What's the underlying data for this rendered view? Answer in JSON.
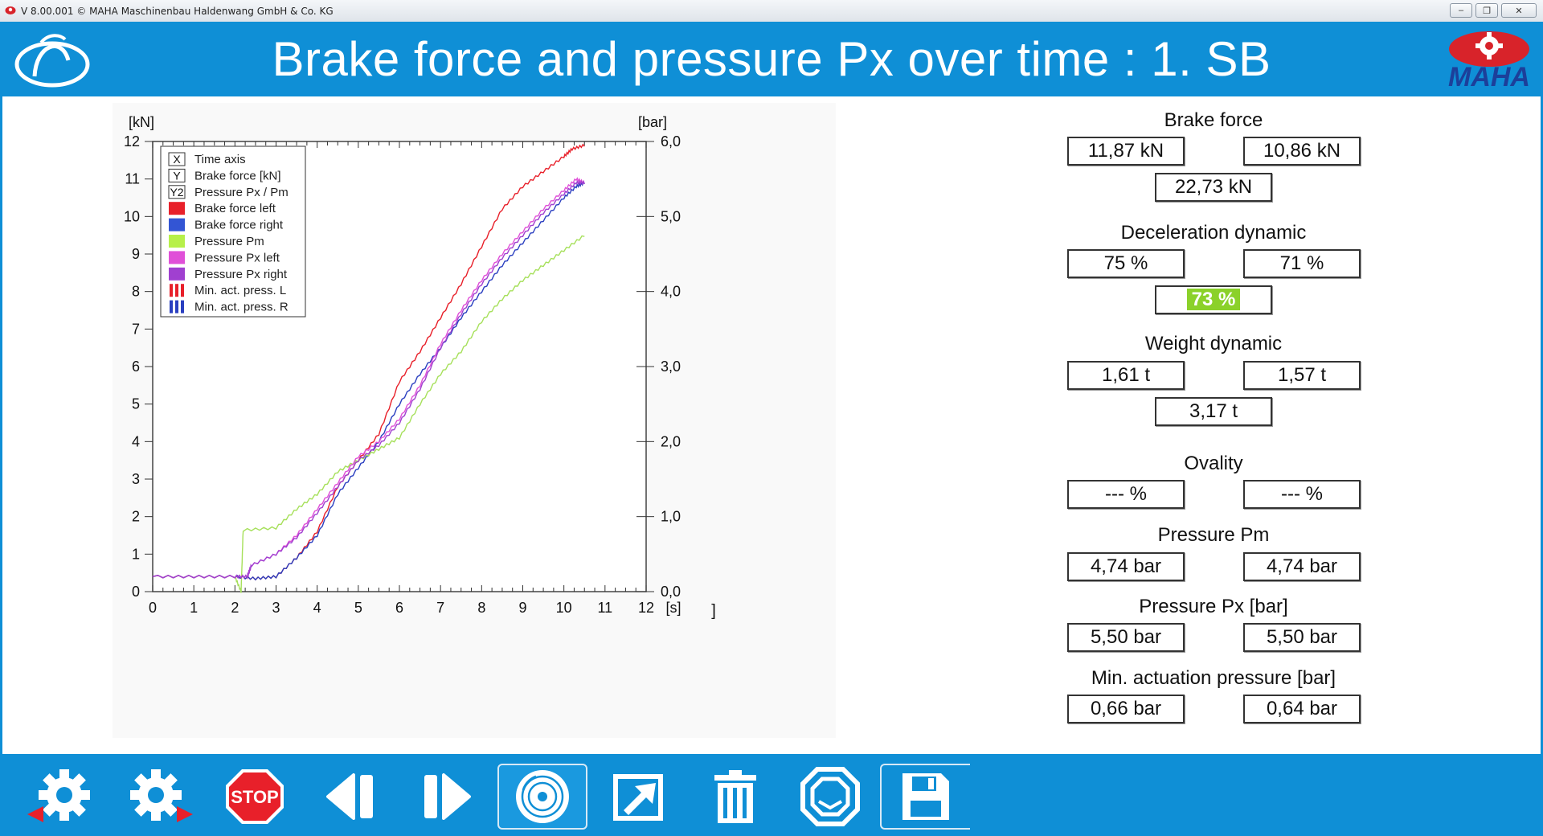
{
  "window": {
    "title": "V 8.00.001  © MAHA Maschinenbau Haldenwang GmbH & Co. KG",
    "min": "–",
    "restore": "❐",
    "close": "✕"
  },
  "header": {
    "title": "Brake force and pressure Px over time : 1. SB",
    "logo_text": "MAHA"
  },
  "colors": {
    "header": "#0f8fd6",
    "brake_left": "#e8202a",
    "brake_right": "#2a3fc0",
    "pressure_pm": "#a6e05a",
    "pressure_px_left": "#e050d8",
    "pressure_px_right": "#a040d0",
    "highlight": "#8bd12a"
  },
  "chart_data": {
    "type": "line",
    "y_unit": "[kN]",
    "y2_unit": "[bar]",
    "x_unit": "[s]",
    "x_trailing": "]",
    "xlim": [
      0,
      12
    ],
    "ylim": [
      0,
      12
    ],
    "y2lim": [
      0,
      6
    ],
    "x_ticks": [
      "0",
      "1",
      "2",
      "3",
      "4",
      "5",
      "6",
      "7",
      "8",
      "9",
      "10",
      "11",
      "12"
    ],
    "y_ticks": [
      "0",
      "1",
      "2",
      "3",
      "4",
      "5",
      "6",
      "7",
      "8",
      "9",
      "10",
      "11",
      "12"
    ],
    "y2_ticks": [
      "0,0",
      "1,0",
      "2,0",
      "3,0",
      "4,0",
      "5,0",
      "6,0"
    ],
    "legend_position": "top-left",
    "legend": [
      {
        "symbol": "X",
        "label": "Time axis"
      },
      {
        "symbol": "Y",
        "label": "Brake force [kN]"
      },
      {
        "symbol": "Y2",
        "label": "Pressure Px / Pm"
      },
      {
        "swatch": "#e8202a",
        "label": "Brake force left"
      },
      {
        "swatch": "#3355d4",
        "label": "Brake force right"
      },
      {
        "swatch": "#b7f04a",
        "label": "Pressure Pm"
      },
      {
        "swatch": "#e050d8",
        "label": "Pressure Px left"
      },
      {
        "swatch": "#a040d0",
        "label": "Pressure Px right"
      },
      {
        "bars": "#e8202a",
        "label": "Min. act. press. L"
      },
      {
        "bars": "#2a3fc0",
        "label": "Min. act. press. R"
      }
    ],
    "series": [
      {
        "name": "Brake force left",
        "color": "#e8202a",
        "axis": "y",
        "x": [
          0,
          1,
          2,
          2.5,
          3,
          3.5,
          4,
          4.5,
          5,
          5.5,
          6,
          6.5,
          7,
          7.5,
          8,
          8.5,
          9,
          9.5,
          10,
          10.2,
          10.5
        ],
        "y": [
          0.4,
          0.4,
          0.4,
          0.35,
          0.4,
          0.9,
          1.6,
          2.8,
          3.5,
          4.2,
          5.6,
          6.4,
          7.3,
          8.2,
          9.2,
          10.2,
          10.8,
          11.2,
          11.6,
          11.8,
          11.9
        ]
      },
      {
        "name": "Brake force right",
        "color": "#2a3fc0",
        "axis": "y",
        "x": [
          0,
          1,
          2,
          2.5,
          3,
          3.5,
          4,
          4.5,
          5,
          5.5,
          6,
          6.5,
          7,
          7.5,
          8,
          8.5,
          9,
          9.5,
          10,
          10.3,
          10.5
        ],
        "y": [
          0.4,
          0.4,
          0.4,
          0.35,
          0.4,
          0.9,
          1.5,
          2.6,
          3.3,
          4.0,
          5.0,
          5.8,
          6.5,
          7.3,
          8.0,
          8.7,
          9.3,
          9.9,
          10.5,
          10.8,
          10.9
        ]
      },
      {
        "name": "Pressure Pm",
        "color": "#a6e05a",
        "axis": "y2",
        "x": [
          0,
          1,
          2,
          2.15,
          2.2,
          3,
          3.5,
          4,
          4.5,
          5,
          5.5,
          6,
          6.5,
          7,
          7.5,
          8,
          8.5,
          9,
          9.5,
          10,
          10.5
        ],
        "y": [
          0.2,
          0.2,
          0.2,
          0.0,
          0.82,
          0.85,
          1.1,
          1.3,
          1.6,
          1.75,
          1.9,
          2.05,
          2.5,
          2.9,
          3.2,
          3.6,
          3.9,
          4.15,
          4.35,
          4.55,
          4.75
        ]
      },
      {
        "name": "Pressure Px left",
        "color": "#e050d8",
        "axis": "y2",
        "x": [
          0,
          1,
          2,
          2.3,
          2.4,
          3,
          3.5,
          4,
          4.5,
          5,
          5.5,
          6,
          6.5,
          7,
          7.5,
          8,
          8.5,
          9,
          9.5,
          10,
          10.3,
          10.5
        ],
        "y": [
          0.2,
          0.2,
          0.2,
          0.2,
          0.35,
          0.5,
          0.75,
          1.1,
          1.45,
          1.8,
          2.0,
          2.3,
          2.75,
          3.3,
          3.75,
          4.15,
          4.5,
          4.8,
          5.1,
          5.35,
          5.5,
          5.45
        ]
      },
      {
        "name": "Pressure Px right",
        "color": "#a040d0",
        "axis": "y2",
        "x": [
          0,
          1,
          2,
          2.3,
          2.4,
          3,
          3.5,
          4,
          4.5,
          5,
          5.5,
          6,
          6.5,
          7,
          7.5,
          8,
          8.5,
          9,
          9.5,
          10,
          10.3,
          10.5
        ],
        "y": [
          0.2,
          0.2,
          0.2,
          0.2,
          0.35,
          0.5,
          0.72,
          1.05,
          1.4,
          1.75,
          1.95,
          2.25,
          2.7,
          3.25,
          3.7,
          4.1,
          4.45,
          4.75,
          5.05,
          5.3,
          5.45,
          5.45
        ]
      }
    ]
  },
  "panel": {
    "brake_force": {
      "label": "Brake force",
      "left": "11,87 kN",
      "right": "10,86 kN",
      "total": "22,73 kN"
    },
    "deceleration": {
      "label": "Deceleration dynamic",
      "left": "75 %",
      "right": "71 %",
      "total": "73 %"
    },
    "weight": {
      "label": "Weight dynamic",
      "left": "1,61 t",
      "right": "1,57 t",
      "total": "3,17 t"
    },
    "ovality": {
      "label": "Ovality",
      "left": "--- %",
      "right": "--- %"
    },
    "pressure_pm": {
      "label": "Pressure Pm",
      "left": "4,74 bar",
      "right": "4,74 bar"
    },
    "pressure_px": {
      "label": "Pressure Px  [bar]",
      "left": "5,50 bar",
      "right": "5,50 bar"
    },
    "min_act": {
      "label": "Min. actuation pressure [bar]",
      "left": "0,66 bar",
      "right": "0,64 bar"
    }
  },
  "footer": {
    "stop_label": "STOP",
    "buttons": [
      "settings-left",
      "settings-right",
      "stop",
      "previous",
      "next",
      "disc",
      "export",
      "delete",
      "tire",
      "save"
    ]
  }
}
